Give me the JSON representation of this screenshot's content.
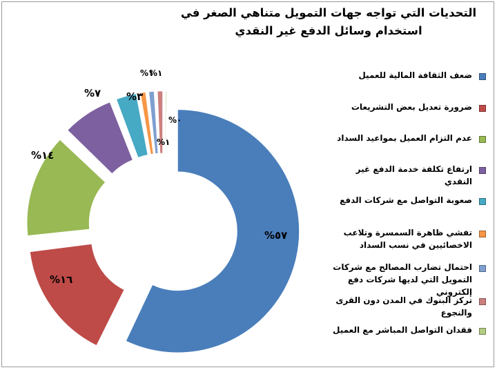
{
  "chart_data": {
    "type": "pie",
    "variant": "doughnut, exploded slices",
    "title": "التحديات التي تواجه جهات التمويل متناهي الصغر في استخدام وسائل الدفع غير النقدي",
    "legend_position": "right",
    "categories": [
      "ضعف الثقافة المالية للعميل",
      "ضرورة تعديل بعض التشريعات",
      "عدم التزام العميل بمواعيد السداد",
      "ارتفاع تكلفة خدمة الدفع غير النقدي",
      "صعوبة التواصل مع شركات الدفع",
      "تفشي ظاهرة السمسرة وتلاعب الاخصائيين في نسب السداد",
      "احتمال تضارب المصالح مع شركات التمويل التي لديها شركات دفع إلكتروني",
      "تركز البنوك في المدن دون القرى والنجوع",
      "فقدان التواصل المباشر مع العميل"
    ],
    "values": [
      57,
      16,
      14,
      7,
      3,
      1,
      1,
      1,
      0
    ],
    "data_labels": [
      "%٥٧",
      "%١٦",
      "%١٤",
      "%٧",
      "%٣",
      "%١",
      "%١",
      "%١",
      "%٠"
    ],
    "colors": [
      "#4a7ebb",
      "#be4b48",
      "#98b954",
      "#7d60a0",
      "#46aac4",
      "#f79646",
      "#7f9fcf",
      "#cc7f7e",
      "#b3cc82"
    ]
  }
}
